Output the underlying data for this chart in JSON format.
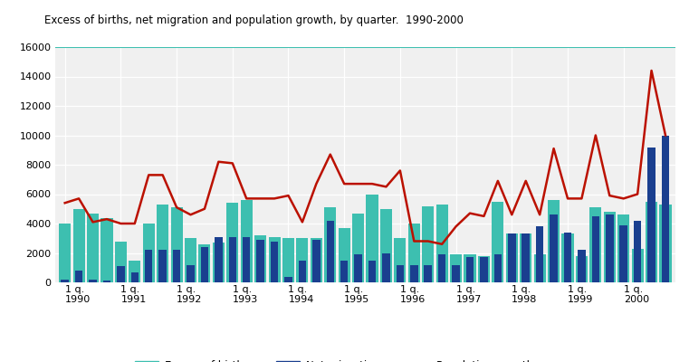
{
  "title": "Excess of births, net migration and population growth, by quarter.  1990-2000",
  "excess_births": [
    4000,
    5000,
    4700,
    4400,
    2800,
    1500,
    4000,
    5300,
    5100,
    3000,
    2600,
    2700,
    5400,
    5600,
    3200,
    3100,
    3000,
    3000,
    3000,
    5100,
    3700,
    4700,
    6000,
    5000,
    3000,
    4000,
    5200,
    5300,
    1900,
    1900,
    1800,
    5500,
    3300,
    3300,
    1900,
    5600,
    3300,
    1800,
    5100,
    4800,
    4600,
    2300,
    5500,
    5300
  ],
  "net_migration": [
    200,
    800,
    200,
    100,
    1100,
    700,
    2200,
    2200,
    2200,
    1200,
    2400,
    3100,
    3100,
    3100,
    2900,
    2800,
    400,
    1500,
    2900,
    4200,
    1500,
    1900,
    1500,
    2000,
    1200,
    1200,
    1200,
    1900,
    1200,
    1700,
    1700,
    1900,
    3300,
    3300,
    3800,
    4600,
    3400,
    2200,
    4500,
    4600,
    3900,
    4200,
    9200,
    10000
  ],
  "pop_growth": [
    5400,
    5700,
    4100,
    4300,
    4000,
    4000,
    7300,
    7300,
    5100,
    4600,
    5000,
    8200,
    8100,
    5700,
    5700,
    5700,
    5900,
    4100,
    6700,
    8700,
    6700,
    6700,
    6700,
    6500,
    7600,
    2800,
    2800,
    2600,
    3800,
    4700,
    4500,
    6900,
    4600,
    6900,
    4600,
    9100,
    5700,
    5700,
    10000,
    5900,
    5700,
    6000,
    14400,
    10000
  ],
  "year_tick_positions": [
    0,
    4,
    8,
    12,
    16,
    20,
    24,
    28,
    32,
    36,
    40
  ],
  "year_labels": [
    "1 q.\n1990",
    "1 q.\n1991",
    "1 q.\n1992",
    "1 q.\n1993",
    "1 q.\n1994",
    "1 q.\n1995",
    "1 q.\n1996",
    "1 q.\n1997",
    "1 q.\n1998",
    "1 q.\n1999",
    "1 q.\n2000"
  ],
  "bar_width": 0.85,
  "color_births": "#3DBFB0",
  "color_migration": "#1A3F8F",
  "color_pop_growth": "#BB1100",
  "ylim": [
    0,
    16000
  ],
  "yticks": [
    0,
    2000,
    4000,
    6000,
    8000,
    10000,
    12000,
    14000,
    16000
  ],
  "background_color": "#F0F0F0",
  "grid_color": "#FFFFFF",
  "legend_labels": [
    "Excess of births",
    "Net migration",
    "Population growth"
  ]
}
